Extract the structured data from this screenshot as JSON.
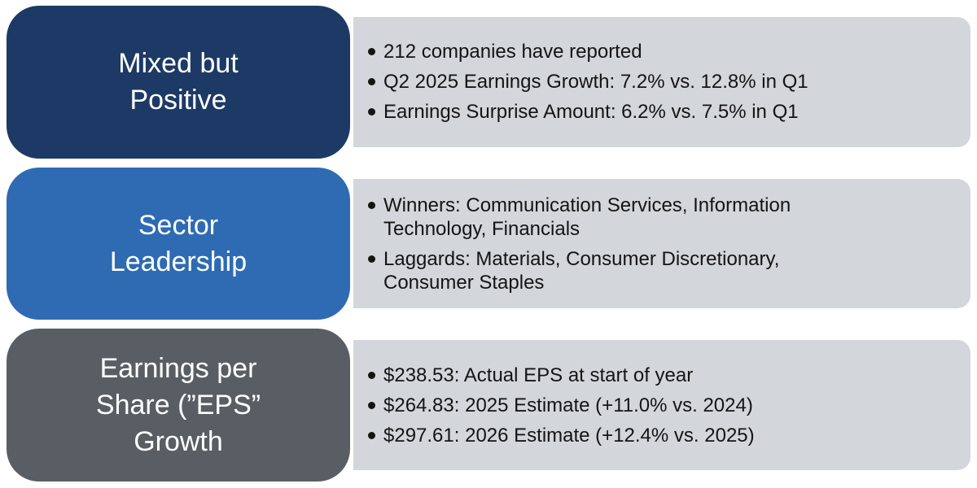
{
  "diagram_type": "block-list-infographic",
  "colors": {
    "row1_label_bg": "#1d3a66",
    "row2_label_bg": "#2e6bb2",
    "row3_label_bg": "#595e65",
    "content_bg": "#d3d6db",
    "label_text": "#ffffff",
    "bullet_text": "#141414",
    "page_bg": "#ffffff"
  },
  "rows": [
    {
      "label": "Mixed but\nPositive",
      "bullets": [
        "212 companies have reported",
        "Q2 2025 Earnings Growth: 7.2% vs. 12.8% in Q1",
        "Earnings Surprise Amount: 6.2% vs. 7.5% in Q1"
      ]
    },
    {
      "label": "Sector\nLeadership",
      "bullets": [
        "Winners: Communication Services, Information\nTechnology, Financials",
        "Laggards: Materials, Consumer Discretionary,\nConsumer Staples"
      ]
    },
    {
      "label": "Earnings per\nShare (”EPS”\nGrowth",
      "bullets": [
        "$238.53: Actual EPS at start of year",
        "$264.83: 2025 Estimate (+11.0% vs. 2024)",
        "$297.61: 2026 Estimate (+12.4% vs. 2025)"
      ]
    }
  ]
}
